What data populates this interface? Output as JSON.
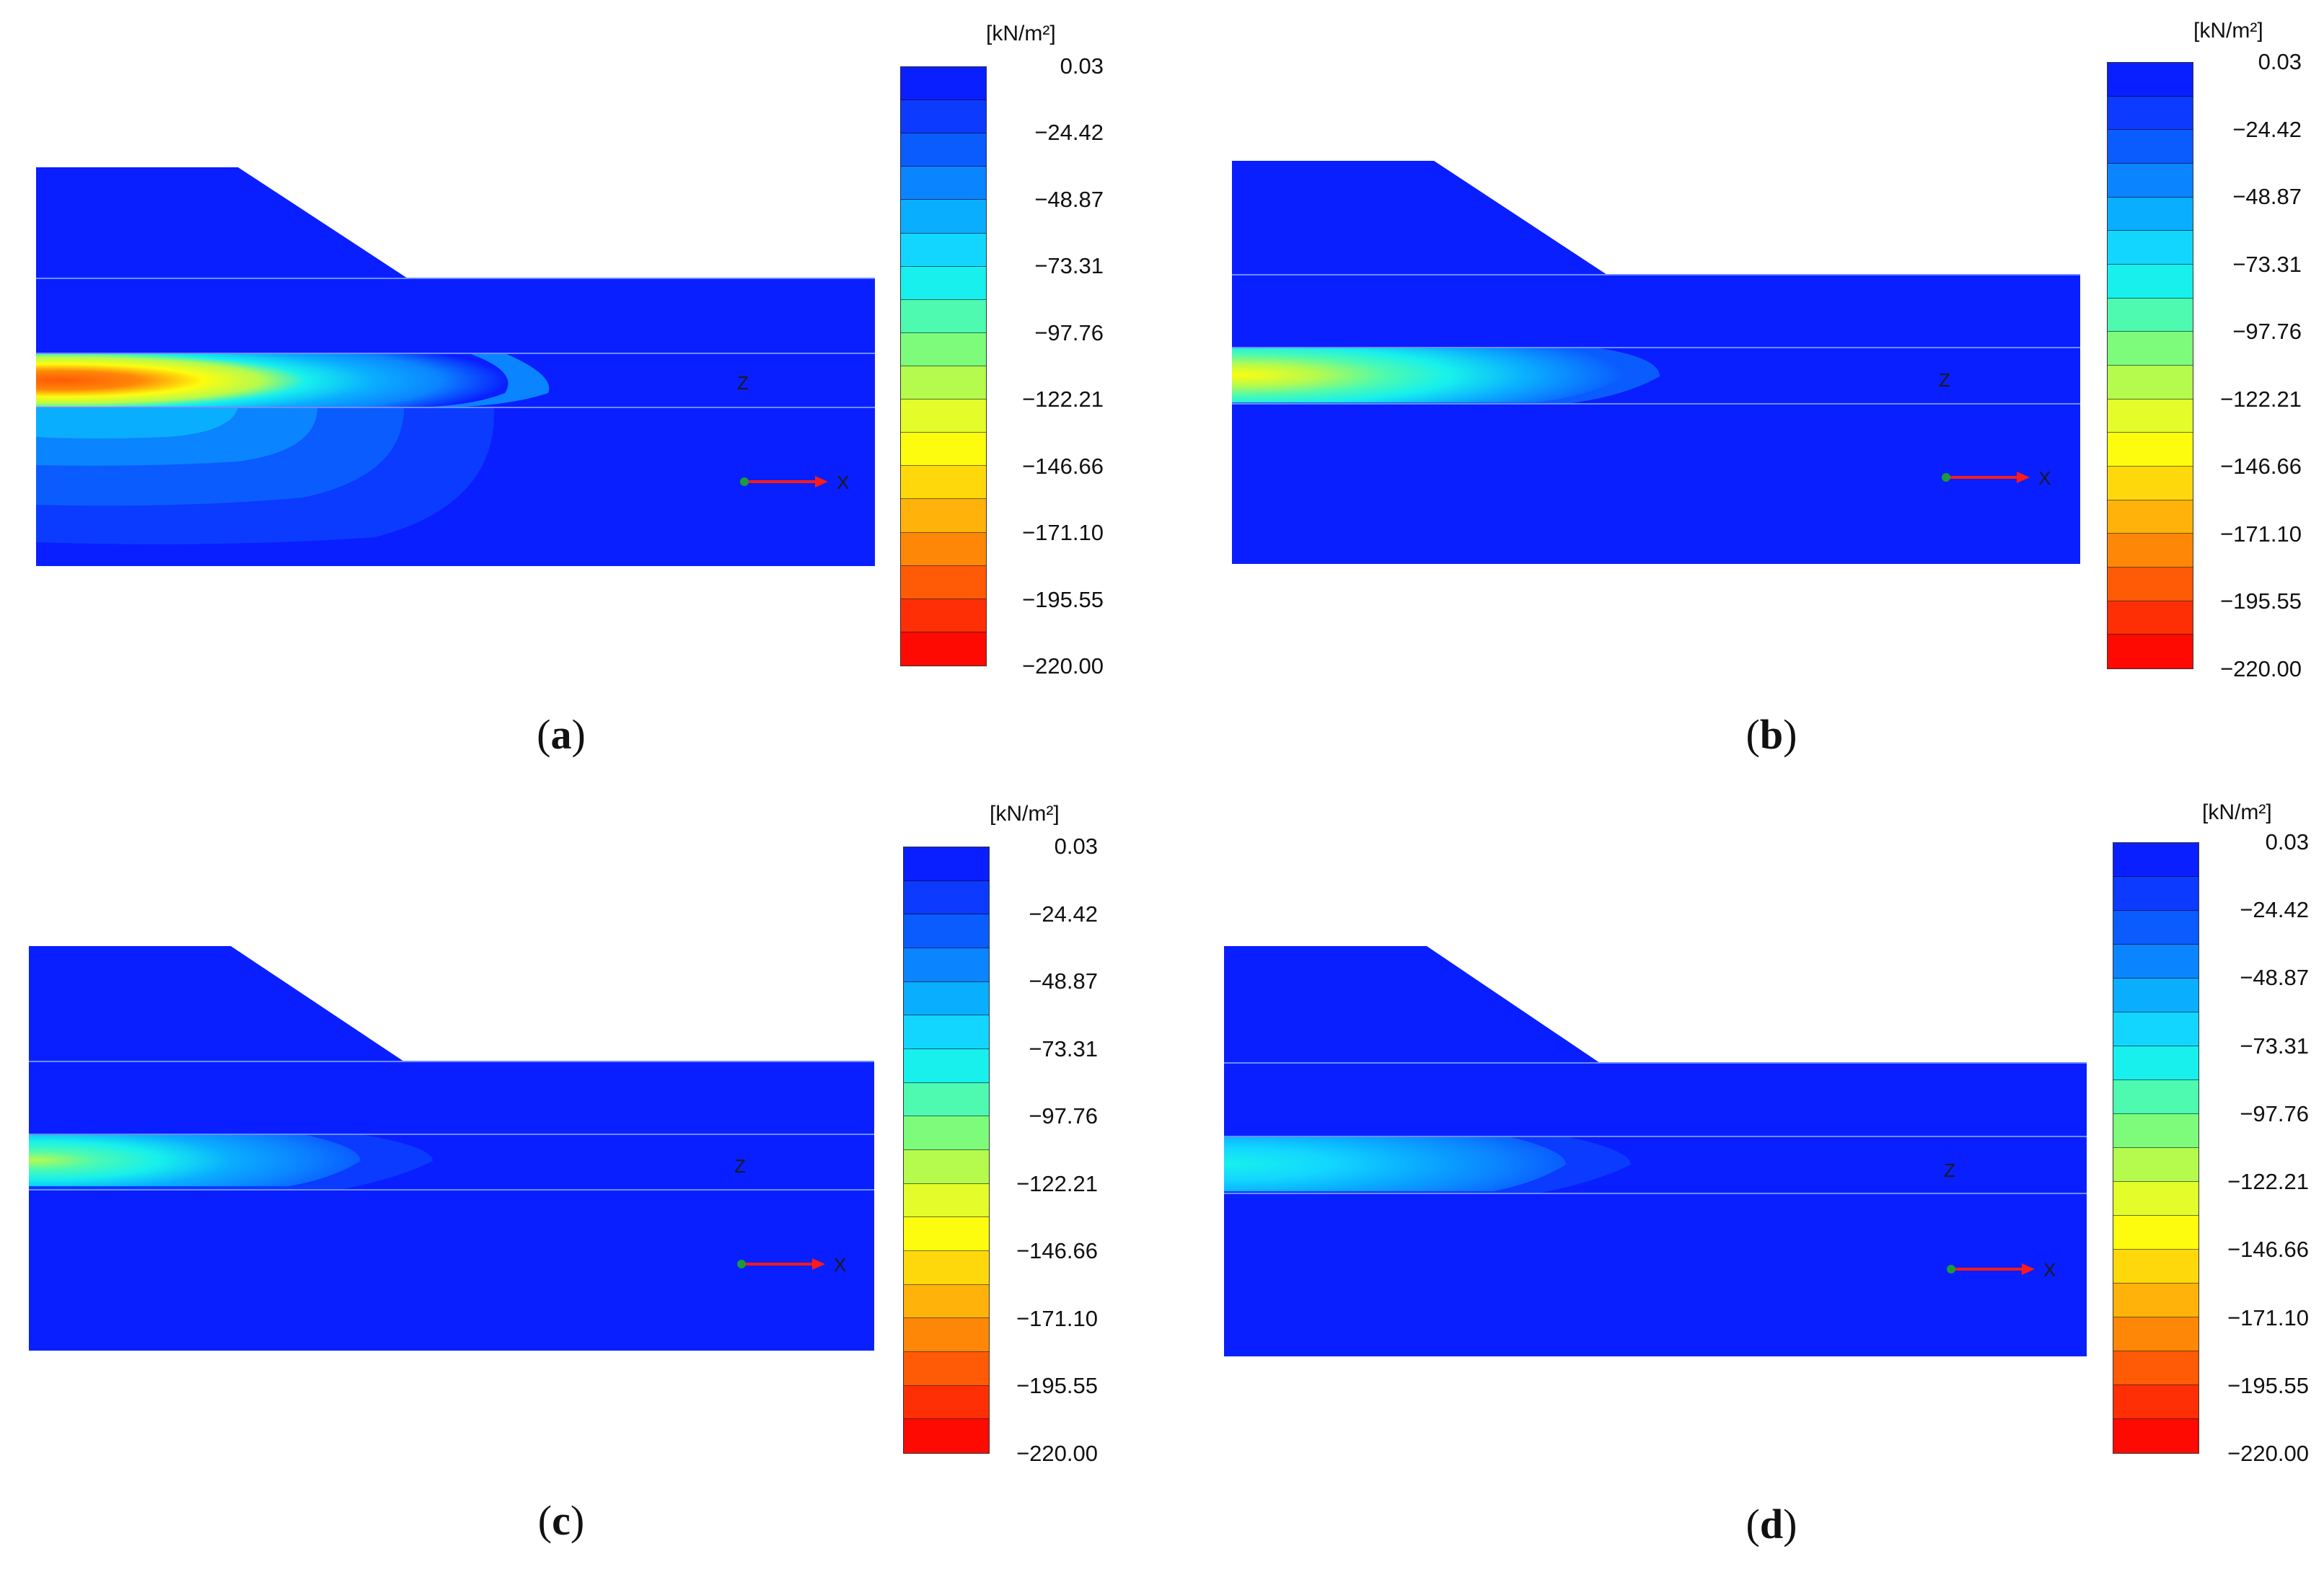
{
  "legend": {
    "unit": "[kN/m²]",
    "ticks": [
      "0.03",
      "−24.42",
      "−48.87",
      "−73.31",
      "−97.76",
      "−122.21",
      "−146.66",
      "−171.10",
      "−195.55",
      "−220.00"
    ],
    "band_colors": [
      "#0a1fff",
      "#0c3bff",
      "#0a5cff",
      "#0b84ff",
      "#0aaeff",
      "#12d6ff",
      "#17f0ec",
      "#4dfab0",
      "#7dfc7c",
      "#b4fb4e",
      "#e4fd2a",
      "#fdfc0e",
      "#ffd80c",
      "#ffb20a",
      "#ff8708",
      "#ff5a06",
      "#ff2f05",
      "#ff0a03"
    ]
  },
  "axes": {
    "z_label": "Z",
    "x_label": "X"
  },
  "panels": [
    {
      "id": "a",
      "caption_letter": "a",
      "intensity": "high"
    },
    {
      "id": "b",
      "caption_letter": "b",
      "intensity": "medium"
    },
    {
      "id": "c",
      "caption_letter": "c",
      "intensity": "low"
    },
    {
      "id": "d",
      "caption_letter": "d",
      "intensity": "lowest"
    }
  ]
}
